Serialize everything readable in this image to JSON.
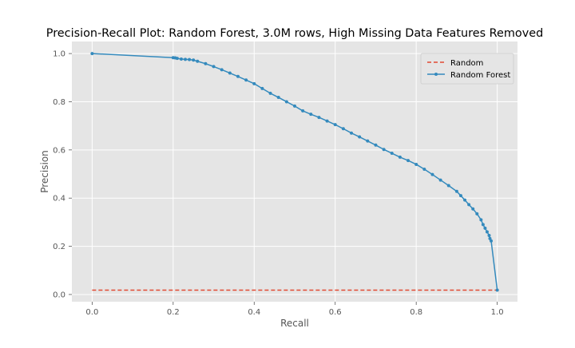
{
  "chart_data": {
    "type": "line",
    "title": "Precision-Recall Plot: Random Forest, 3.0M rows, High Missing Data Features Removed",
    "xlabel": "Recall",
    "ylabel": "Precision",
    "xlim": [
      -0.05,
      1.05
    ],
    "ylim": [
      -0.03,
      1.05
    ],
    "xticks": [
      0.0,
      0.2,
      0.4,
      0.6,
      0.8,
      1.0
    ],
    "xtick_labels": [
      "0.0",
      "0.2",
      "0.4",
      "0.6",
      "0.8",
      "1.0"
    ],
    "yticks": [
      0.0,
      0.2,
      0.4,
      0.6,
      0.8,
      1.0
    ],
    "ytick_labels": [
      "0.0",
      "0.2",
      "0.4",
      "0.6",
      "0.8",
      "1.0"
    ],
    "grid": true,
    "legend_position": "top-right",
    "series": [
      {
        "name": "Random",
        "style": "dashed",
        "color": "#E24A33",
        "x": [
          0.0,
          1.0
        ],
        "y": [
          0.018,
          0.018
        ]
      },
      {
        "name": "Random Forest",
        "style": "line-with-markers",
        "color": "#348ABD",
        "x": [
          0.0,
          0.2,
          0.205,
          0.21,
          0.22,
          0.23,
          0.24,
          0.25,
          0.26,
          0.28,
          0.3,
          0.32,
          0.34,
          0.36,
          0.38,
          0.4,
          0.42,
          0.44,
          0.46,
          0.48,
          0.5,
          0.52,
          0.54,
          0.56,
          0.58,
          0.6,
          0.62,
          0.64,
          0.66,
          0.68,
          0.7,
          0.72,
          0.74,
          0.76,
          0.78,
          0.8,
          0.82,
          0.84,
          0.86,
          0.88,
          0.9,
          0.91,
          0.92,
          0.93,
          0.94,
          0.95,
          0.96,
          0.965,
          0.97,
          0.975,
          0.98,
          0.982,
          0.985,
          1.0
        ],
        "y": [
          1.0,
          0.983,
          0.982,
          0.98,
          0.977,
          0.976,
          0.975,
          0.973,
          0.968,
          0.958,
          0.946,
          0.933,
          0.919,
          0.905,
          0.89,
          0.875,
          0.855,
          0.835,
          0.818,
          0.8,
          0.782,
          0.762,
          0.748,
          0.735,
          0.72,
          0.705,
          0.688,
          0.67,
          0.654,
          0.637,
          0.62,
          0.602,
          0.586,
          0.57,
          0.556,
          0.54,
          0.52,
          0.498,
          0.475,
          0.452,
          0.428,
          0.41,
          0.392,
          0.373,
          0.355,
          0.335,
          0.31,
          0.29,
          0.275,
          0.26,
          0.245,
          0.232,
          0.222,
          0.018
        ]
      }
    ]
  }
}
